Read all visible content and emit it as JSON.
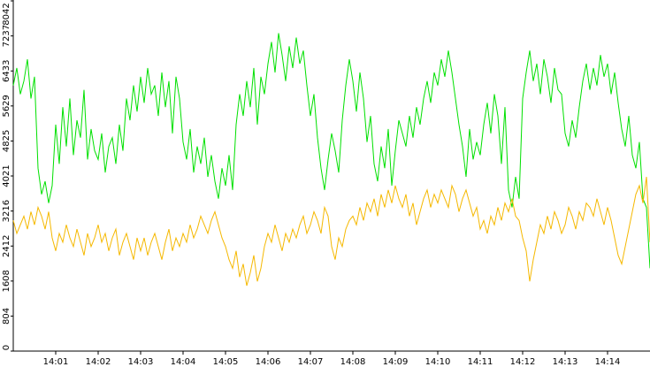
{
  "chart_data": {
    "type": "line",
    "categories": [
      null,
      null,
      null,
      null,
      null,
      null,
      null,
      null,
      null,
      null,
      null,
      null,
      "14:01",
      null,
      null,
      null,
      null,
      null,
      null,
      null,
      null,
      null,
      null,
      null,
      "14:02",
      null,
      null,
      null,
      null,
      null,
      null,
      null,
      null,
      null,
      null,
      null,
      "14:03",
      null,
      null,
      null,
      null,
      null,
      null,
      null,
      null,
      null,
      null,
      null,
      "14:04",
      null,
      null,
      null,
      null,
      null,
      null,
      null,
      null,
      null,
      null,
      null,
      "14:05",
      null,
      null,
      null,
      null,
      null,
      null,
      null,
      null,
      null,
      null,
      null,
      "14:06",
      null,
      null,
      null,
      null,
      null,
      null,
      null,
      null,
      null,
      null,
      null,
      "14:07",
      null,
      null,
      null,
      null,
      null,
      null,
      null,
      null,
      null,
      null,
      null,
      "14:08",
      null,
      null,
      null,
      null,
      null,
      null,
      null,
      null,
      null,
      null,
      null,
      "14:09",
      null,
      null,
      null,
      null,
      null,
      null,
      null,
      null,
      null,
      null,
      null,
      "14:10",
      null,
      null,
      null,
      null,
      null,
      null,
      null,
      null,
      null,
      null,
      null,
      "14:11",
      null,
      null,
      null,
      null,
      null,
      null,
      null,
      null,
      null,
      null,
      null,
      "14:12",
      null,
      null,
      null,
      null,
      null,
      null,
      null,
      null,
      null,
      null,
      null,
      "14:13",
      null,
      null,
      null,
      null,
      null,
      null,
      null,
      null,
      null,
      null,
      null,
      "14:14",
      null,
      null,
      null,
      null,
      null,
      null,
      null,
      null,
      null,
      null,
      null,
      null
    ],
    "series": [
      {
        "color": "#00e000",
        "values": [
          6100,
          6500,
          5900,
          6200,
          6700,
          5800,
          6300,
          4200,
          3600,
          3900,
          3400,
          3800,
          5200,
          4300,
          5600,
          4700,
          5800,
          4500,
          5300,
          4900,
          6000,
          4400,
          5100,
          4600,
          4400,
          5000,
          4100,
          4700,
          4900,
          4300,
          5200,
          4600,
          5800,
          5300,
          6100,
          5500,
          6300,
          5700,
          6500,
          5900,
          6100,
          5400,
          6400,
          5600,
          6200,
          5000,
          6300,
          5800,
          4800,
          4400,
          5100,
          4100,
          4700,
          4300,
          4900,
          4000,
          4500,
          3900,
          3500,
          4200,
          3800,
          4500,
          3700,
          5200,
          5900,
          5400,
          6200,
          5600,
          6500,
          5200,
          6300,
          5900,
          6600,
          7100,
          6400,
          7300,
          6800,
          6200,
          7000,
          6500,
          7200,
          6600,
          6900,
          6100,
          5400,
          5900,
          4900,
          4200,
          3700,
          4400,
          5000,
          4600,
          4100,
          5300,
          6100,
          6700,
          6200,
          5500,
          6400,
          5800,
          4800,
          5400,
          4300,
          3900,
          4700,
          4200,
          5100,
          3800,
          4600,
          5300,
          5000,
          4700,
          5400,
          4900,
          5600,
          5200,
          5800,
          6200,
          5700,
          6400,
          6100,
          6700,
          6300,
          6900,
          6400,
          5800,
          5200,
          4700,
          4000,
          5100,
          4400,
          4800,
          4500,
          5200,
          5700,
          5000,
          5900,
          5400,
          4300,
          5600,
          3700,
          3300,
          4000,
          3500,
          5800,
          6400,
          6900,
          6200,
          6600,
          5900,
          6700,
          6300,
          5700,
          6500,
          6000,
          5900,
          5000,
          4700,
          5300,
          4900,
          5600,
          6200,
          6600,
          6000,
          6500,
          6100,
          6800,
          6300,
          6600,
          5900,
          6400,
          5700,
          5100,
          4700,
          5400,
          4500,
          4200,
          4800,
          3500,
          3300,
          1900
        ]
      },
      {
        "color": "#f5b800",
        "values": [
          3000,
          2700,
          2900,
          3100,
          2800,
          3200,
          2900,
          3300,
          3100,
          2800,
          3200,
          2600,
          2300,
          2700,
          2500,
          2900,
          2600,
          2400,
          2800,
          2500,
          2200,
          2700,
          2400,
          2600,
          2900,
          2500,
          2700,
          2300,
          2600,
          2800,
          2200,
          2500,
          2700,
          2400,
          2100,
          2600,
          2300,
          2600,
          2200,
          2500,
          2700,
          2400,
          2100,
          2500,
          2800,
          2300,
          2600,
          2400,
          2700,
          2500,
          2900,
          2600,
          2800,
          3100,
          2900,
          2700,
          3000,
          3200,
          2900,
          2600,
          2400,
          2100,
          1900,
          2300,
          1700,
          2000,
          1500,
          1800,
          2200,
          1600,
          1900,
          2400,
          2700,
          2500,
          2900,
          2600,
          2300,
          2700,
          2500,
          2800,
          2600,
          2900,
          3100,
          2700,
          2900,
          3200,
          3000,
          2700,
          3300,
          3100,
          2400,
          2100,
          2600,
          2400,
          2800,
          3000,
          3100,
          2900,
          3300,
          3000,
          3400,
          3200,
          3500,
          3100,
          3600,
          3300,
          3700,
          3400,
          3800,
          3500,
          3300,
          3600,
          3100,
          3400,
          2900,
          3200,
          3500,
          3700,
          3300,
          3600,
          3400,
          3700,
          3500,
          3300,
          3800,
          3600,
          3200,
          3500,
          3700,
          3400,
          3100,
          3300,
          2800,
          3000,
          2700,
          3100,
          2900,
          3300,
          3000,
          3400,
          3200,
          3500,
          3100,
          3000,
          2600,
          2300,
          1600,
          2100,
          2500,
          2900,
          2700,
          3100,
          2800,
          3200,
          3000,
          2700,
          2900,
          3300,
          3100,
          2800,
          3200,
          3000,
          3400,
          3300,
          3100,
          3500,
          3200,
          2900,
          3300,
          3000,
          2600,
          2200,
          2000,
          2400,
          2800,
          3200,
          3600,
          3800,
          3400,
          4000,
          2500
        ]
      }
    ],
    "ylim": [
      0,
      8042
    ],
    "yticks": [
      0,
      804,
      1608,
      2412,
      3216,
      4021,
      4825,
      5629,
      6433,
      7237,
      8042
    ]
  }
}
